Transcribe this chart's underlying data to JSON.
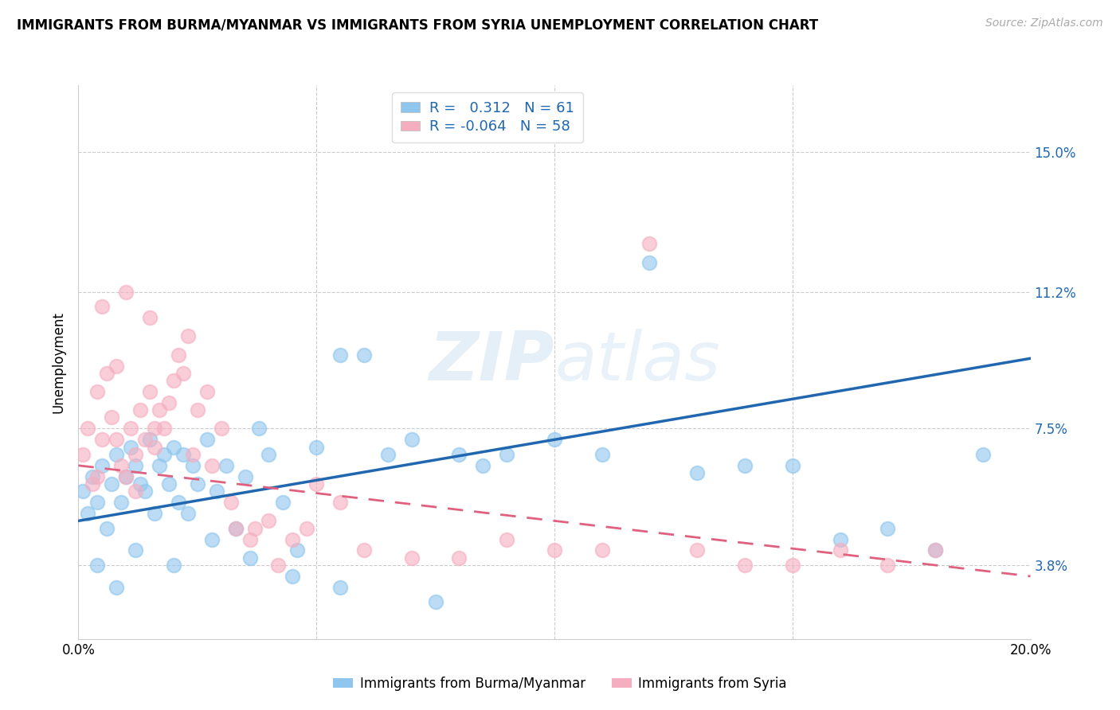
{
  "title": "IMMIGRANTS FROM BURMA/MYANMAR VS IMMIGRANTS FROM SYRIA UNEMPLOYMENT CORRELATION CHART",
  "source": "Source: ZipAtlas.com",
  "ylabel": "Unemployment",
  "ytick_labels": [
    "15.0%",
    "11.2%",
    "7.5%",
    "3.8%"
  ],
  "ytick_values": [
    0.15,
    0.112,
    0.075,
    0.038
  ],
  "xmin": 0.0,
  "xmax": 0.2,
  "ymin": 0.018,
  "ymax": 0.168,
  "r_burma": 0.312,
  "n_burma": 61,
  "r_syria": -0.064,
  "n_syria": 58,
  "color_burma": "#8ec6ed",
  "color_syria": "#f5aec0",
  "trendline_burma_color": "#2167b0",
  "trendline_syria_color": "#e06080",
  "watermark_zip": "ZIP",
  "watermark_atlas": "atlas",
  "legend_label_burma": "Immigrants from Burma/Myanmar",
  "legend_label_syria": "Immigrants from Syria",
  "burma_x": [
    0.001,
    0.002,
    0.003,
    0.004,
    0.005,
    0.006,
    0.007,
    0.008,
    0.009,
    0.01,
    0.011,
    0.012,
    0.013,
    0.014,
    0.015,
    0.016,
    0.017,
    0.018,
    0.019,
    0.02,
    0.021,
    0.022,
    0.023,
    0.024,
    0.025,
    0.027,
    0.029,
    0.031,
    0.033,
    0.035,
    0.038,
    0.04,
    0.043,
    0.046,
    0.05,
    0.055,
    0.06,
    0.065,
    0.07,
    0.08,
    0.085,
    0.09,
    0.1,
    0.11,
    0.12,
    0.13,
    0.14,
    0.15,
    0.16,
    0.17,
    0.18,
    0.19,
    0.004,
    0.008,
    0.012,
    0.02,
    0.028,
    0.036,
    0.045,
    0.055,
    0.075
  ],
  "burma_y": [
    0.058,
    0.052,
    0.062,
    0.055,
    0.065,
    0.048,
    0.06,
    0.068,
    0.055,
    0.062,
    0.07,
    0.065,
    0.06,
    0.058,
    0.072,
    0.052,
    0.065,
    0.068,
    0.06,
    0.07,
    0.055,
    0.068,
    0.052,
    0.065,
    0.06,
    0.072,
    0.058,
    0.065,
    0.048,
    0.062,
    0.075,
    0.068,
    0.055,
    0.042,
    0.07,
    0.095,
    0.095,
    0.068,
    0.072,
    0.068,
    0.065,
    0.068,
    0.072,
    0.068,
    0.12,
    0.063,
    0.065,
    0.065,
    0.045,
    0.048,
    0.042,
    0.068,
    0.038,
    0.032,
    0.042,
    0.038,
    0.045,
    0.04,
    0.035,
    0.032,
    0.028
  ],
  "syria_x": [
    0.001,
    0.002,
    0.003,
    0.004,
    0.005,
    0.006,
    0.007,
    0.008,
    0.009,
    0.01,
    0.011,
    0.012,
    0.013,
    0.014,
    0.015,
    0.016,
    0.017,
    0.018,
    0.019,
    0.02,
    0.021,
    0.022,
    0.023,
    0.025,
    0.027,
    0.03,
    0.033,
    0.037,
    0.04,
    0.045,
    0.05,
    0.055,
    0.06,
    0.07,
    0.08,
    0.09,
    0.1,
    0.11,
    0.12,
    0.13,
    0.14,
    0.15,
    0.16,
    0.17,
    0.18,
    0.004,
    0.008,
    0.012,
    0.016,
    0.024,
    0.028,
    0.032,
    0.036,
    0.042,
    0.048,
    0.005,
    0.01,
    0.015
  ],
  "syria_y": [
    0.068,
    0.075,
    0.06,
    0.085,
    0.072,
    0.09,
    0.078,
    0.092,
    0.065,
    0.062,
    0.075,
    0.068,
    0.08,
    0.072,
    0.085,
    0.07,
    0.08,
    0.075,
    0.082,
    0.088,
    0.095,
    0.09,
    0.1,
    0.08,
    0.085,
    0.075,
    0.048,
    0.048,
    0.05,
    0.045,
    0.06,
    0.055,
    0.042,
    0.04,
    0.04,
    0.045,
    0.042,
    0.042,
    0.125,
    0.042,
    0.038,
    0.038,
    0.042,
    0.038,
    0.042,
    0.062,
    0.072,
    0.058,
    0.075,
    0.068,
    0.065,
    0.055,
    0.045,
    0.038,
    0.048,
    0.108,
    0.112,
    0.105
  ]
}
